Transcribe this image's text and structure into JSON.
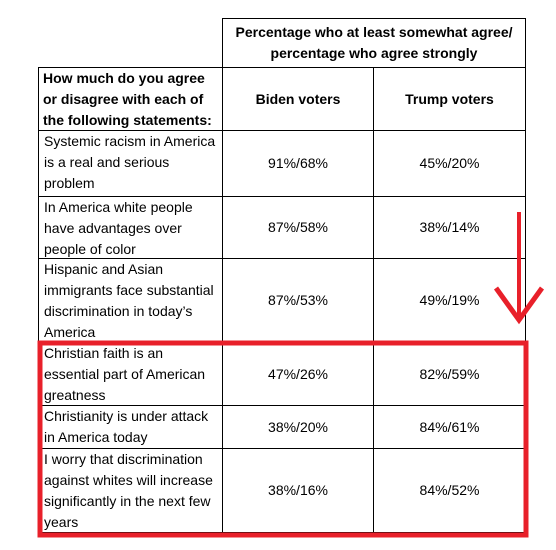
{
  "header": {
    "top_header": "Percentage who at least somewhat agree/ percentage who agree strongly",
    "row_header": "How much do you agree or disagree with each of the following statements:",
    "columns": [
      "Biden voters",
      "Trump voters"
    ]
  },
  "table": {
    "rows": [
      [
        "Systemic racism in America is a real and serious problem",
        "91%/68%",
        "45%/20%"
      ],
      [
        "In America white people have advantages over people of color",
        "87%/58%",
        "38%/14%"
      ],
      [
        "Hispanic and Asian immigrants face substantial discrimination in today’s America",
        "87%/53%",
        "49%/19%"
      ],
      [
        "Christian faith is an essential part of American greatness",
        "47%/26%",
        "82%/59%"
      ],
      [
        "Christianity is under attack in America today",
        "38%/20%",
        "84%/61%"
      ],
      [
        "I worry that discrimination against whites will increase significantly in the next few years",
        "38%/16%",
        "84%/52%"
      ]
    ]
  }
}
